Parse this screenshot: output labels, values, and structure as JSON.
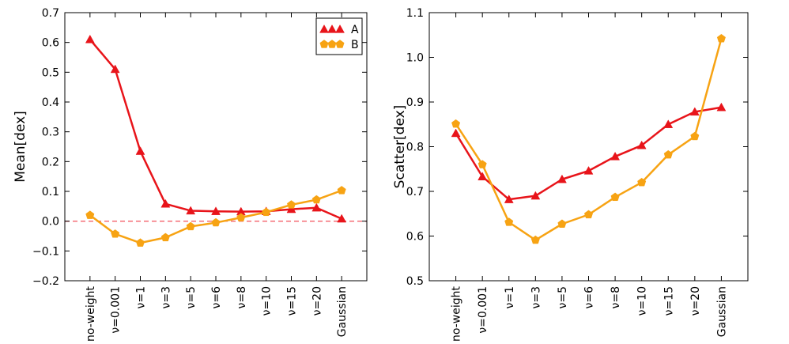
{
  "colors": {
    "A": "#e8141a",
    "B": "#f7a313",
    "zero_line": "#f4606a"
  },
  "chart_data": [
    {
      "type": "line",
      "categories": [
        "no-weight",
        "ν=0.001",
        "ν=1",
        "ν=3",
        "ν=5",
        "ν=6",
        "ν=8",
        "ν=10",
        "ν=15",
        "ν=20",
        "Gaussian"
      ],
      "ylabel": "Mean[dex]",
      "xlabel": "",
      "ylim": [
        -0.2,
        0.7
      ],
      "yticks": [
        "−0.2",
        "−0.1",
        "0.0",
        "0.1",
        "0.2",
        "0.3",
        "0.4",
        "0.5",
        "0.6",
        "0.7"
      ],
      "ytick_values": [
        -0.2,
        -0.1,
        0.0,
        0.1,
        0.2,
        0.3,
        0.4,
        0.5,
        0.6,
        0.7
      ],
      "reference_line": 0.0,
      "legend": "top-right",
      "series": [
        {
          "name": "A",
          "marker": "triangle",
          "values": [
            0.61,
            0.51,
            0.235,
            0.058,
            0.035,
            0.033,
            0.032,
            0.033,
            0.04,
            0.045,
            0.008
          ]
        },
        {
          "name": "B",
          "marker": "pentagon",
          "values": [
            0.02,
            -0.043,
            -0.073,
            -0.055,
            -0.018,
            -0.005,
            0.012,
            0.03,
            0.055,
            0.072,
            0.103
          ]
        }
      ]
    },
    {
      "type": "line",
      "categories": [
        "no-weight",
        "ν=0.001",
        "ν=1",
        "ν=3",
        "ν=5",
        "ν=6",
        "ν=8",
        "ν=10",
        "ν=15",
        "ν=20",
        "Gaussian"
      ],
      "ylabel": "Scatter[dex]",
      "xlabel": "",
      "ylim": [
        0.5,
        1.1
      ],
      "yticks": [
        "0.5",
        "0.6",
        "0.7",
        "0.8",
        "0.9",
        "1.0",
        "1.1"
      ],
      "ytick_values": [
        0.5,
        0.6,
        0.7,
        0.8,
        0.9,
        1.0,
        1.1
      ],
      "series": [
        {
          "name": "A",
          "marker": "triangle",
          "values": [
            0.83,
            0.733,
            0.682,
            0.69,
            0.727,
            0.746,
            0.778,
            0.803,
            0.85,
            0.878,
            0.888
          ]
        },
        {
          "name": "B",
          "marker": "pentagon",
          "values": [
            0.851,
            0.76,
            0.631,
            0.591,
            0.627,
            0.648,
            0.687,
            0.72,
            0.782,
            0.823,
            1.042
          ]
        }
      ]
    }
  ]
}
